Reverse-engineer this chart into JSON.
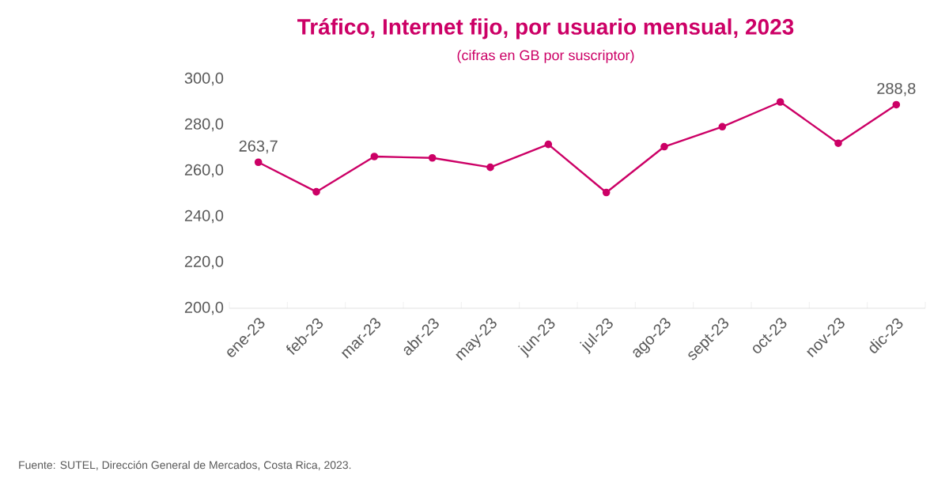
{
  "chart_data": {
    "type": "line",
    "title": "Tráfico, Internet fijo, por usuario mensual, 2023",
    "subtitle": "(cifras en GB por suscriptor)",
    "categories": [
      "ene-23",
      "feb-23",
      "mar-23",
      "abr-23",
      "may-23",
      "jun-23",
      "jul-23",
      "ago-23",
      "sept-23",
      "oct-23",
      "nov-23",
      "dic-23"
    ],
    "values": [
      263.7,
      250.8,
      266.2,
      265.6,
      261.5,
      271.5,
      250.5,
      270.5,
      279.2,
      290.0,
      272.0,
      288.8
    ],
    "value_labels": [
      "263,7",
      null,
      null,
      null,
      null,
      null,
      null,
      null,
      null,
      null,
      null,
      "288,8"
    ],
    "color": "#cc0066",
    "marker": "circle",
    "ylim": [
      200,
      300
    ],
    "yticks": [
      {
        "value": 200,
        "label": "200,0"
      },
      {
        "value": 220,
        "label": "220,0"
      },
      {
        "value": 240,
        "label": "240,0"
      },
      {
        "value": 260,
        "label": "260,0"
      },
      {
        "value": 280,
        "label": "280,0"
      },
      {
        "value": 300,
        "label": "300,0"
      }
    ],
    "annotations": [
      "Fuente: SUTEL, Dirección General de Mercados, Costa Rica, 2023."
    ]
  }
}
